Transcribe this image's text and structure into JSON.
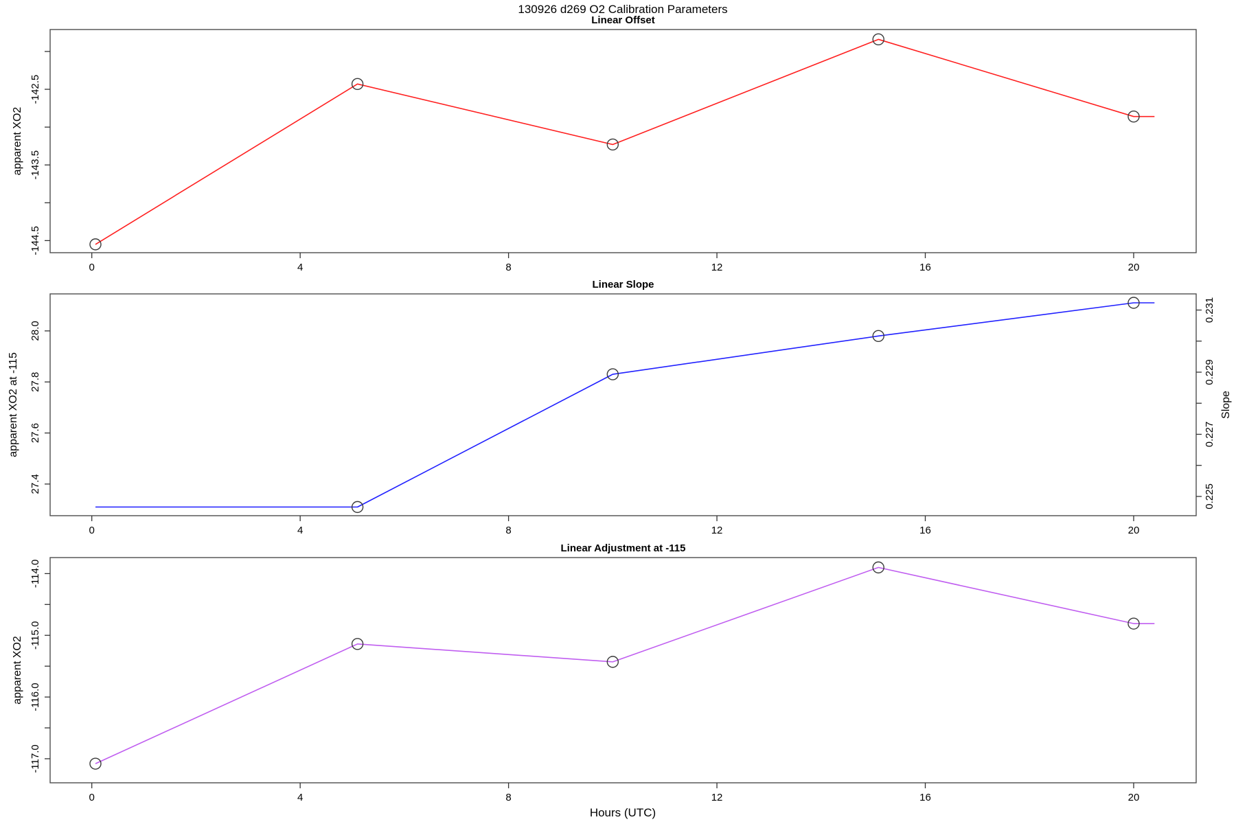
{
  "figure": {
    "title": "130926   d269   O2 Calibration Parameters",
    "background": "#ffffff",
    "box_color": "#4d4d4d",
    "tick_color": "#333333",
    "marker": "open-circle",
    "marker_color": "#3a3a3a"
  },
  "x_axis": {
    "label": "Hours (UTC)",
    "ticks": [
      0,
      4,
      8,
      12,
      16,
      20
    ],
    "ticklabels": [
      "0",
      "4",
      "8",
      "12",
      "16",
      "20"
    ],
    "xlim": [
      -0.8,
      21.2
    ]
  },
  "chart_data": [
    {
      "type": "line",
      "title": "Linear Offset",
      "ylabel": "apparent XO2",
      "line_color": "#ff2020",
      "x": [
        0.07,
        5.1,
        10.0,
        15.1,
        20.0
      ],
      "y": [
        -144.55,
        -142.43,
        -143.23,
        -141.84,
        -142.86
      ],
      "markers": [
        1,
        1,
        1,
        1,
        1
      ],
      "line_end_x": 20.4,
      "ylim": [
        -144.66,
        -141.71
      ],
      "yticks": [
        -142.0,
        -142.5,
        -143.0,
        -143.5,
        -144.0,
        -144.5
      ],
      "yticklabels": [
        "",
        "-142.5",
        "",
        "-143.5",
        "",
        "-144.5"
      ]
    },
    {
      "type": "line",
      "title": "Linear Slope",
      "ylabel": "apparent XO2 at -115",
      "line_color": "#2020ff",
      "x": [
        0.07,
        5.1,
        10.0,
        15.1,
        20.0
      ],
      "y": [
        27.31,
        27.31,
        27.83,
        27.98,
        28.11
      ],
      "markers": [
        0,
        1,
        1,
        1,
        1
      ],
      "line_end_x": 20.4,
      "ylim": [
        27.276,
        28.145
      ],
      "yticks": [
        28.0,
        27.8,
        27.6,
        27.4
      ],
      "yticklabels": [
        "28.0",
        "27.8",
        "27.6",
        "27.4"
      ],
      "right_axis": {
        "label": "Slope",
        "ylim": [
          0.22438,
          0.23152
        ],
        "ticks": [
          0.231,
          0.23,
          0.229,
          0.228,
          0.227,
          0.226,
          0.225
        ],
        "ticklabels": [
          "0.231",
          "",
          "0.229",
          "",
          "0.227",
          "",
          "0.225"
        ],
        "values": [
          0.2246,
          0.2246,
          0.229,
          0.2302,
          0.2313
        ]
      }
    },
    {
      "type": "line",
      "title": "Linear Adjustment at -115",
      "ylabel": "apparent XO2",
      "line_color": "#c05ef0",
      "x": [
        0.07,
        5.1,
        10.0,
        15.1,
        20.0
      ],
      "y": [
        -117.08,
        -115.14,
        -115.43,
        -113.9,
        -114.81
      ],
      "markers": [
        1,
        1,
        1,
        1,
        1
      ],
      "line_end_x": 20.4,
      "ylim": [
        -117.39,
        -113.74
      ],
      "yticks": [
        -114.0,
        -114.5,
        -115.0,
        -115.5,
        -116.0,
        -116.5,
        -117.0
      ],
      "yticklabels": [
        "-114.0",
        "",
        "-115.0",
        "",
        "-116.0",
        "",
        "-117.0"
      ]
    }
  ]
}
